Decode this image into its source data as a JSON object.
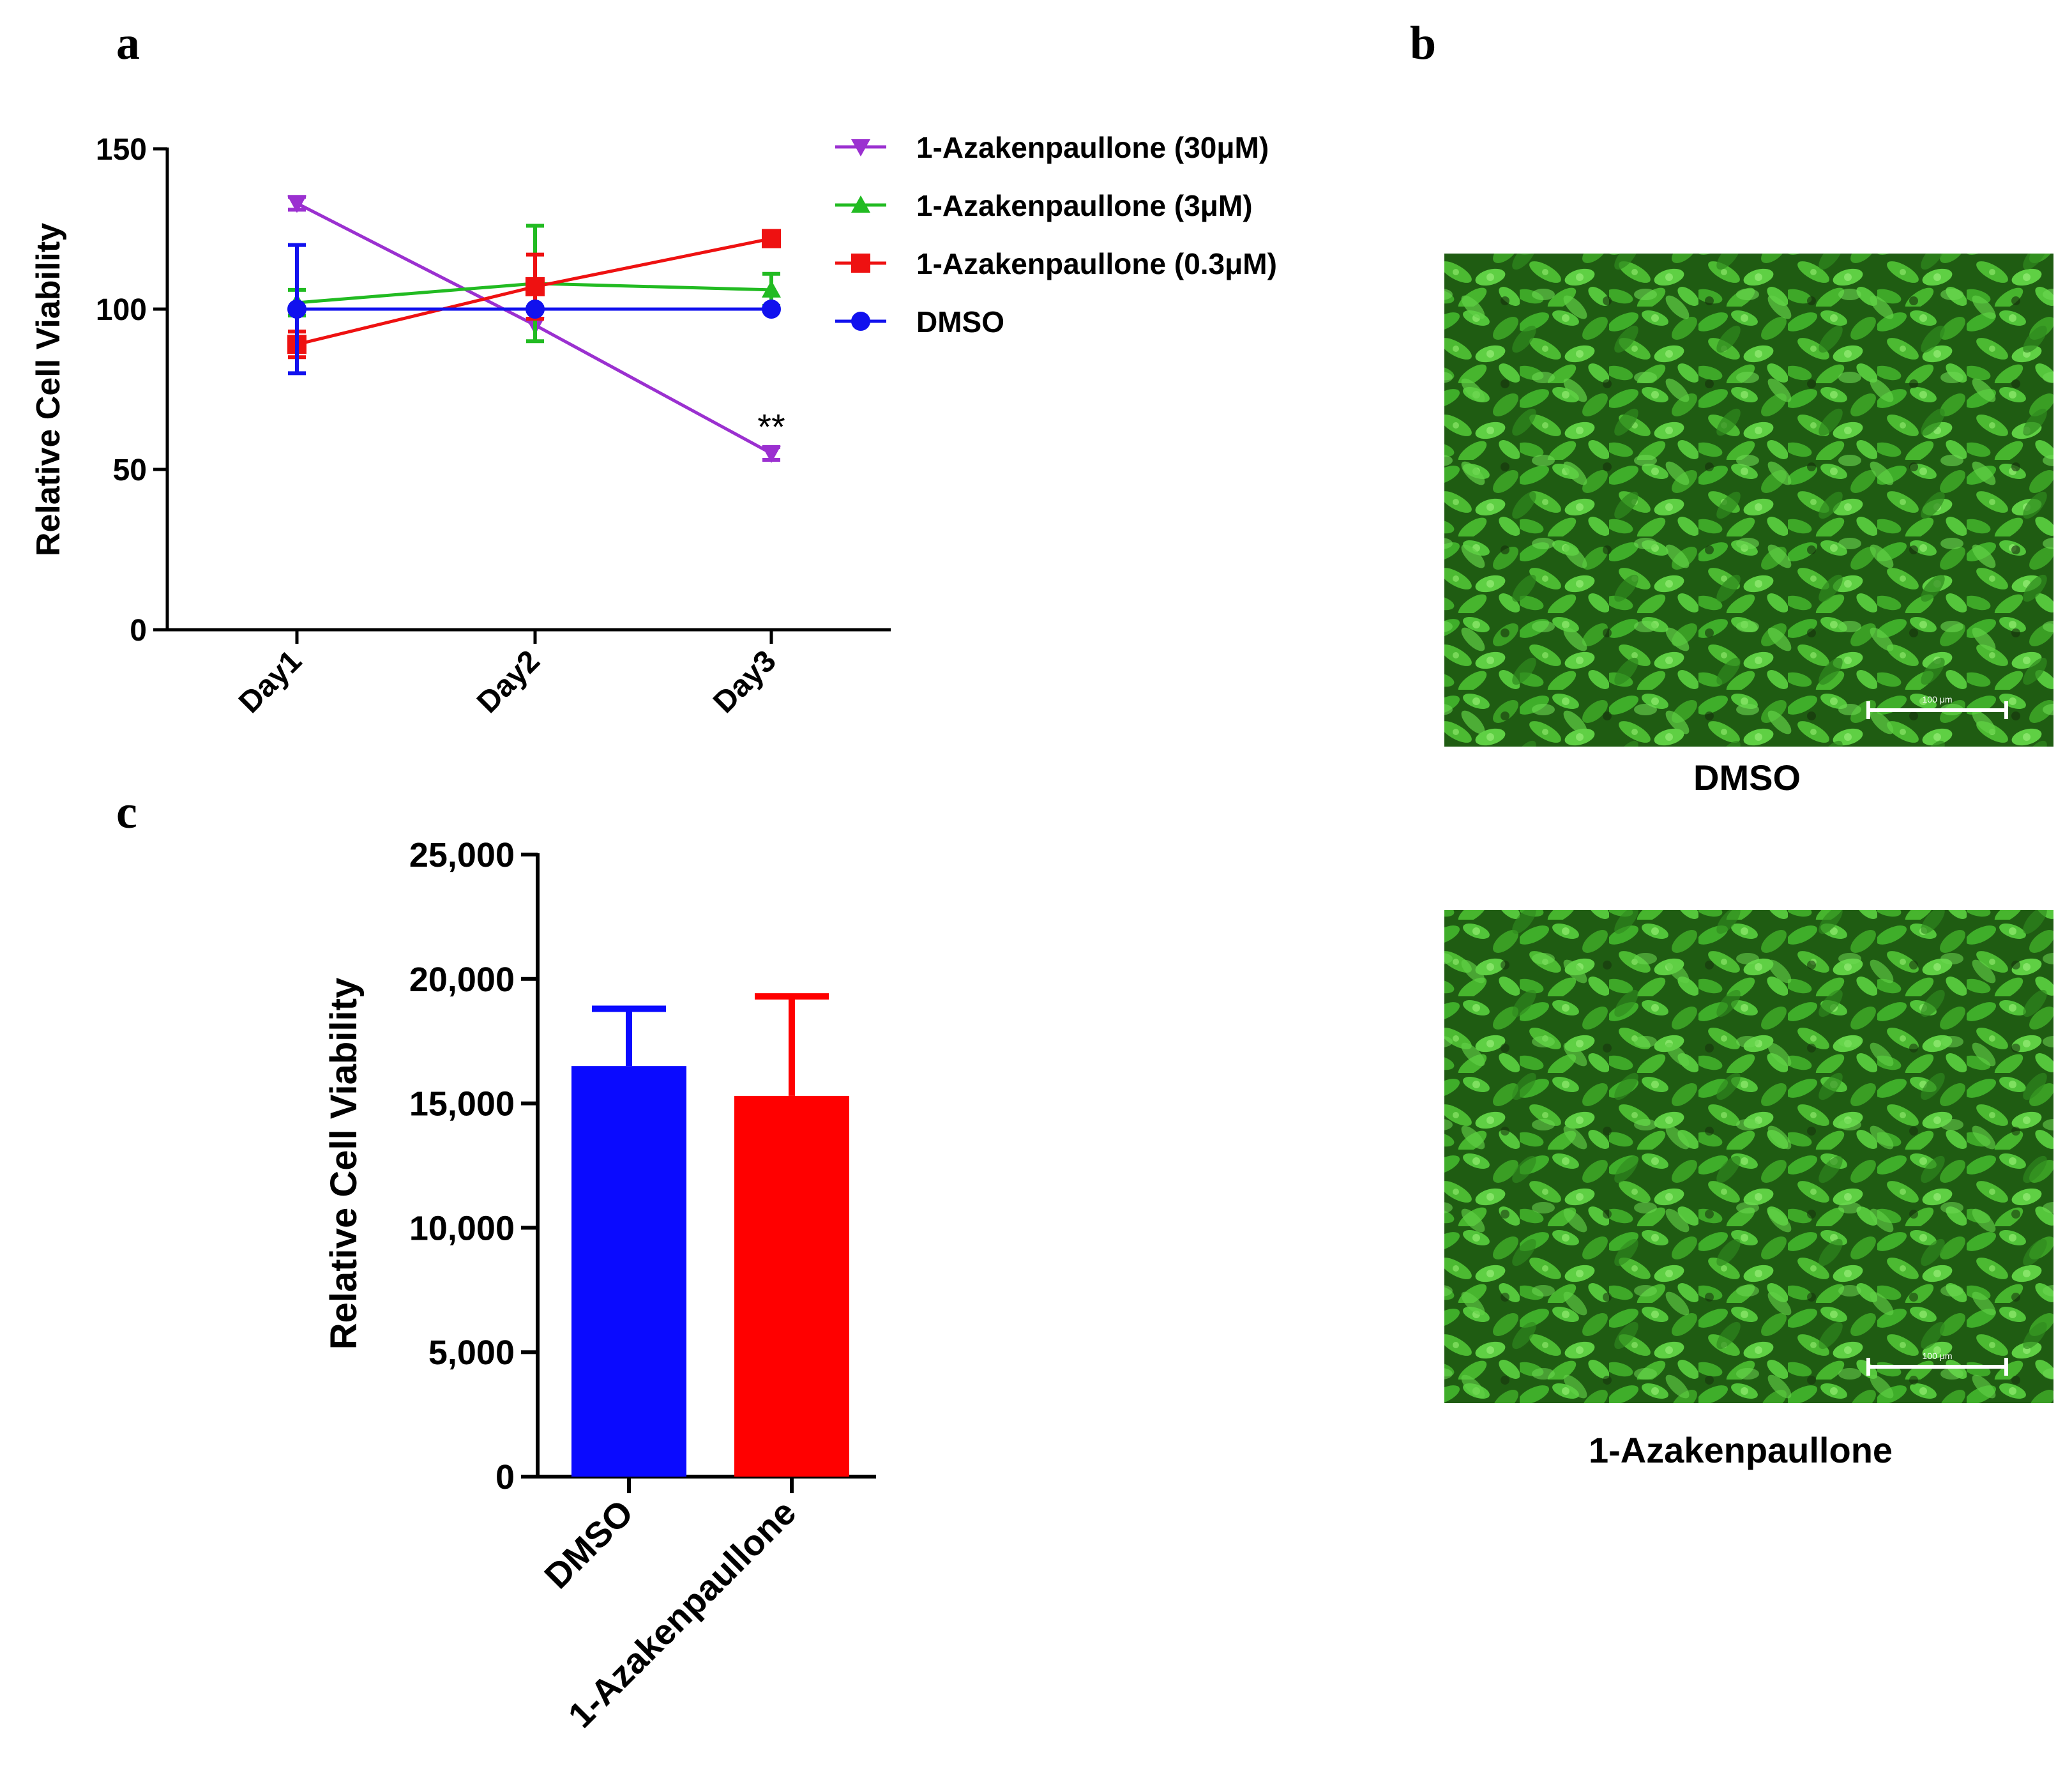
{
  "panels": {
    "a": {
      "letter": "a"
    },
    "b": {
      "letter": "b"
    },
    "c": {
      "letter": "c"
    }
  },
  "chart_data": [
    {
      "panel": "a",
      "type": "line",
      "title": "",
      "xlabel": "",
      "ylabel": "Relative Cell Viability",
      "categories": [
        "Day1",
        "Day2",
        "Day3"
      ],
      "ylim": [
        0,
        150
      ],
      "yticks": [
        0,
        50,
        100,
        150
      ],
      "series": [
        {
          "name": "1-Azakenpaullone (30μM)",
          "color": "#9b30d0",
          "marker": "triangle-down",
          "values": [
            133,
            95,
            55
          ],
          "errors": [
            2,
            0,
            2
          ]
        },
        {
          "name": "1-Azakenpaullone (3μM)",
          "color": "#22bb22",
          "marker": "triangle-up",
          "values": [
            102,
            108,
            106
          ],
          "errors": [
            4,
            18,
            5
          ]
        },
        {
          "name": "1-Azakenpaullone (0.3μM)",
          "color": "#ee1111",
          "marker": "square",
          "values": [
            89,
            107,
            122
          ],
          "errors": [
            4,
            10,
            0
          ]
        },
        {
          "name": "DMSO",
          "color": "#1111ee",
          "marker": "circle",
          "values": [
            100,
            100,
            100
          ],
          "errors": [
            20,
            0,
            0
          ]
        }
      ],
      "annotations": [
        {
          "text": "**",
          "category": "Day3",
          "y": 65
        }
      ]
    },
    {
      "panel": "c",
      "type": "bar",
      "title": "",
      "xlabel": "",
      "ylabel": "Relative Cell Viability",
      "categories": [
        "DMSO",
        "1-Azakenpaullone"
      ],
      "values": [
        16500,
        15300
      ],
      "errors": [
        2300,
        4000
      ],
      "colors": [
        "#0a0aff",
        "#ff0000"
      ],
      "ylim": [
        0,
        25000
      ],
      "yticks": [
        "0",
        "5,000",
        "10,000",
        "15,000",
        "20,000",
        "25,000"
      ],
      "ytick_values": [
        0,
        5000,
        10000,
        15000,
        20000,
        25000
      ]
    }
  ],
  "images": {
    "top": {
      "caption": "DMSO",
      "scale_label": "100 μm"
    },
    "bottom": {
      "caption": "1-Azakenpaullone",
      "scale_label": "100 μm"
    }
  }
}
